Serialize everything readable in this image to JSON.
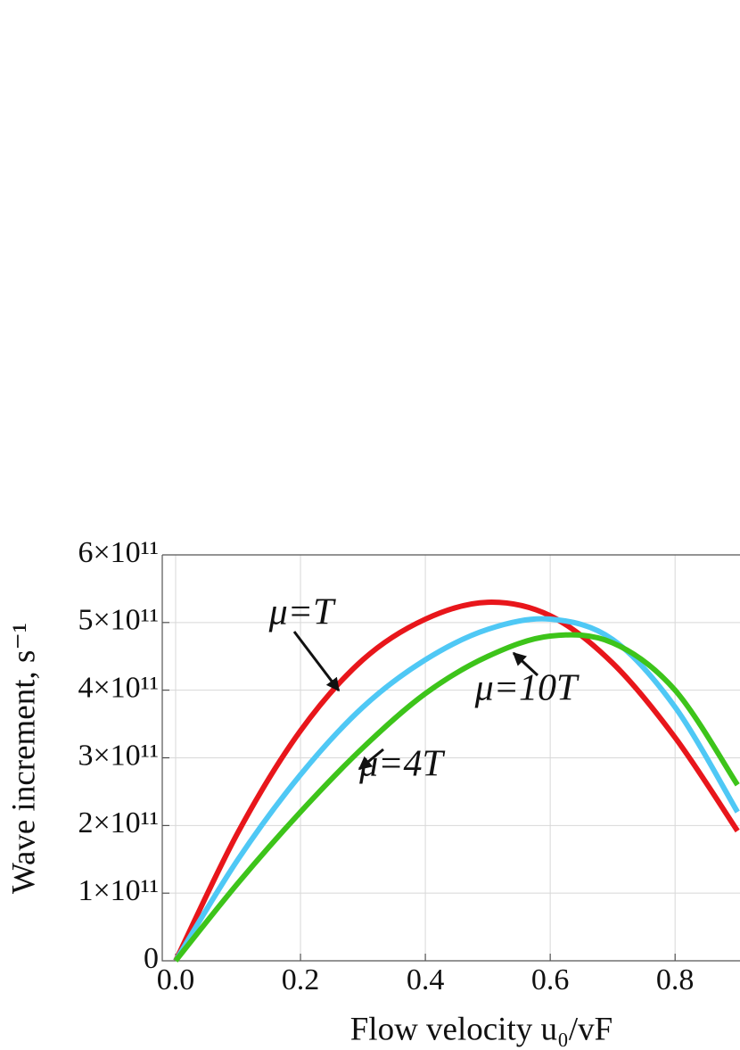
{
  "chart_data": {
    "type": "line",
    "x_label": "Flow velocity u₀/vF",
    "y_label": "Wave increment, s⁻¹",
    "x": [
      0,
      0.1,
      0.2,
      0.3,
      0.4,
      0.5,
      0.6,
      0.7,
      0.8,
      0.9
    ],
    "series": [
      {
        "color": "#e8161b",
        "values": [
          0,
          190000000000.0,
          340000000000.0,
          445000000000.0,
          505000000000.0,
          530000000000.0,
          510000000000.0,
          440000000000.0,
          330000000000.0,
          192000000000.0
        ]
      },
      {
        "color": "#4fc8f5",
        "values": [
          0,
          150000000000.0,
          275000000000.0,
          375000000000.0,
          445000000000.0,
          490000000000.0,
          505000000000.0,
          475000000000.0,
          375000000000.0,
          220000000000.0
        ]
      },
      {
        "color": "#3dc41a",
        "values": [
          0,
          115000000000.0,
          220000000000.0,
          315000000000.0,
          395000000000.0,
          450000000000.0,
          480000000000.0,
          470000000000.0,
          400000000000.0,
          260000000000.0
        ]
      }
    ],
    "annotations": [
      "μ=T",
      "μ=4T",
      "μ=10T"
    ],
    "xlim": [
      -0.0214,
      0.904
    ],
    "ylim": [
      0,
      600000000000.0
    ],
    "xticks": [
      {
        "value": 0,
        "label": "0.0"
      },
      0.2,
      0.4,
      0.6,
      0.8
    ],
    "yticks": [
      0,
      {
        "value": 100000000000.0,
        "label": "1×10¹¹"
      },
      {
        "value": 200000000000.0,
        "label": "2×10¹¹"
      },
      {
        "value": 300000000000.0,
        "label": "3×10¹¹"
      },
      {
        "value": 400000000000.0,
        "label": "4×10¹¹"
      },
      {
        "value": 500000000000.0,
        "label": "5×10¹¹"
      },
      {
        "value": 600000000000.0,
        "label": "6×10¹¹"
      }
    ],
    "grid": true
  }
}
